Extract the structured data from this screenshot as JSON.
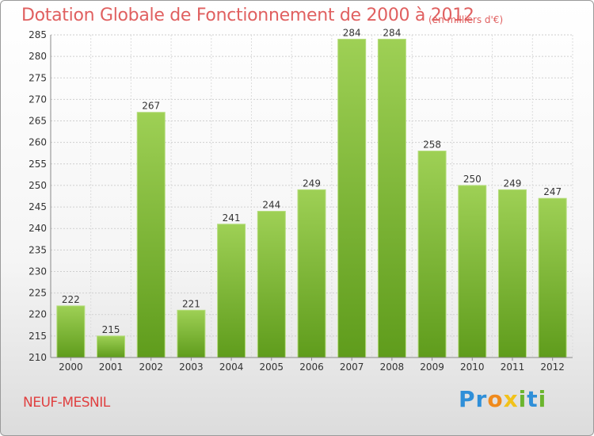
{
  "chart_data": {
    "type": "bar",
    "title": "Dotation Globale de Fonctionnement de 2000 à 2012",
    "subtitle": "(en milliers d'€)",
    "categories": [
      "2000",
      "2001",
      "2002",
      "2003",
      "2004",
      "2005",
      "2006",
      "2007",
      "2008",
      "2009",
      "2010",
      "2011",
      "2012"
    ],
    "values": [
      222,
      215,
      267,
      221,
      241,
      244,
      249,
      284,
      284,
      258,
      250,
      249,
      247
    ],
    "ylim": [
      210,
      285
    ],
    "yticks": [
      210,
      215,
      220,
      225,
      230,
      235,
      240,
      245,
      250,
      255,
      260,
      265,
      270,
      275,
      280,
      285
    ],
    "grid": true,
    "bar_color": "#7ab830"
  },
  "footer": {
    "commune": "NEUF-MESNIL",
    "brand": "Proxiti",
    "brand_letters": [
      {
        "ch": "P",
        "color": "#2f8fd8"
      },
      {
        "ch": "r",
        "color": "#2f8fd8"
      },
      {
        "ch": "o",
        "color": "#f08a1c"
      },
      {
        "ch": "x",
        "color": "#f2c21a"
      },
      {
        "ch": "i",
        "color": "#6bb52e"
      },
      {
        "ch": "t",
        "color": "#2f8fd8"
      },
      {
        "ch": "i",
        "color": "#6bb52e"
      }
    ]
  }
}
